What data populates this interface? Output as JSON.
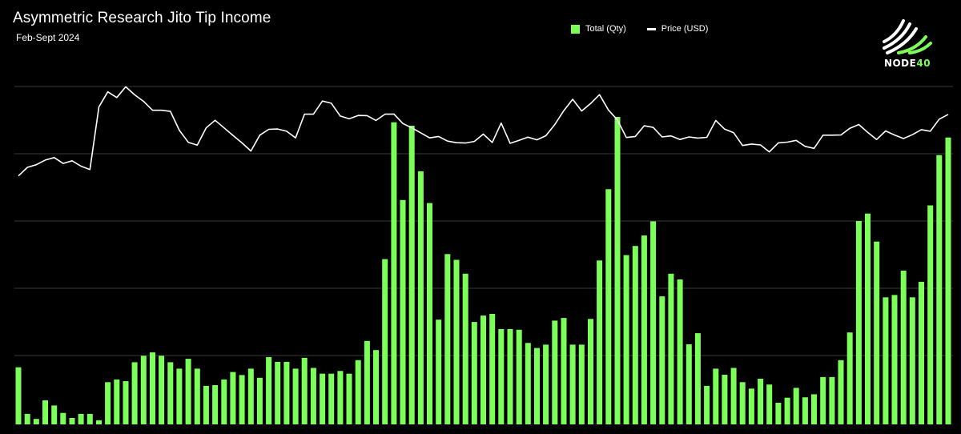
{
  "header": {
    "title": "Asymmetric Research Jito Tip Income",
    "subtitle": "Feb-Sept 2024"
  },
  "legend": {
    "bar_label": "Total (Qty)",
    "line_label": "Price (USD)"
  },
  "logo": {
    "text_main": "NODE",
    "text_accent": "40"
  },
  "colors": {
    "background": "#000000",
    "bar": "#7dff5a",
    "line": "#ffffff",
    "grid": "#3a3a3a",
    "accent": "#7dff5a"
  },
  "chart_data": {
    "type": "bar",
    "title": "Asymmetric Research Jito Tip Income",
    "subtitle": "Feb-Sept 2024",
    "xlabel": "",
    "ylabel": "",
    "grid": true,
    "legend_position": "top-center",
    "ylim": [
      0,
      1
    ],
    "series": [
      {
        "name": "Total (Qty)",
        "type": "bar",
        "values": [
          0.169,
          0.031,
          0.016,
          0.071,
          0.056,
          0.034,
          0.019,
          0.031,
          0.031,
          0.012,
          0.125,
          0.133,
          0.128,
          0.184,
          0.203,
          0.213,
          0.203,
          0.184,
          0.165,
          0.194,
          0.165,
          0.114,
          0.116,
          0.133,
          0.155,
          0.146,
          0.165,
          0.138,
          0.199,
          0.185,
          0.185,
          0.165,
          0.197,
          0.167,
          0.15,
          0.15,
          0.158,
          0.15,
          0.19,
          0.247,
          0.22,
          0.489,
          0.894,
          0.664,
          0.884,
          0.749,
          0.655,
          0.31,
          0.504,
          0.487,
          0.446,
          0.303,
          0.322,
          0.327,
          0.282,
          0.282,
          0.28,
          0.241,
          0.226,
          0.236,
          0.307,
          0.315,
          0.236,
          0.236,
          0.312,
          0.485,
          0.696,
          0.91,
          0.501,
          0.528,
          0.559,
          0.601,
          0.379,
          0.446,
          0.429,
          0.237,
          0.27,
          0.114,
          0.165,
          0.147,
          0.167,
          0.125,
          0.106,
          0.135,
          0.118,
          0.064,
          0.079,
          0.108,
          0.08,
          0.089,
          0.14,
          0.14,
          0.19,
          0.272,
          0.602,
          0.624,
          0.541,
          0.376,
          0.383,
          0.455,
          0.376,
          0.422,
          0.648,
          0.797,
          0.849
        ]
      },
      {
        "name": "Price (USD)",
        "type": "line",
        "values": [
          0.497,
          0.545,
          0.56,
          0.586,
          0.6,
          0.567,
          0.582,
          0.552,
          0.533,
          0.885,
          0.97,
          0.938,
          0.998,
          0.953,
          0.916,
          0.866,
          0.866,
          0.86,
          0.754,
          0.686,
          0.67,
          0.767,
          0.81,
          0.767,
          0.725,
          0.683,
          0.637,
          0.726,
          0.759,
          0.761,
          0.748,
          0.711,
          0.844,
          0.844,
          0.918,
          0.906,
          0.834,
          0.818,
          0.837,
          0.836,
          0.809,
          0.844,
          0.845,
          0.792,
          0.767,
          0.739,
          0.711,
          0.719,
          0.693,
          0.684,
          0.682,
          0.691,
          0.732,
          0.685,
          0.794,
          0.68,
          0.697,
          0.715,
          0.7,
          0.723,
          0.786,
          0.864,
          0.928,
          0.862,
          0.904,
          0.954,
          0.867,
          0.812,
          0.713,
          0.719,
          0.779,
          0.77,
          0.716,
          0.722,
          0.702,
          0.716,
          0.71,
          0.714,
          0.809,
          0.76,
          0.74,
          0.668,
          0.676,
          0.671,
          0.632,
          0.683,
          0.687,
          0.697,
          0.663,
          0.652,
          0.726,
          0.726,
          0.727,
          0.765,
          0.786,
          0.742,
          0.702,
          0.75,
          0.727,
          0.707,
          0.729,
          0.757,
          0.748,
          0.816,
          0.843
        ]
      }
    ]
  }
}
